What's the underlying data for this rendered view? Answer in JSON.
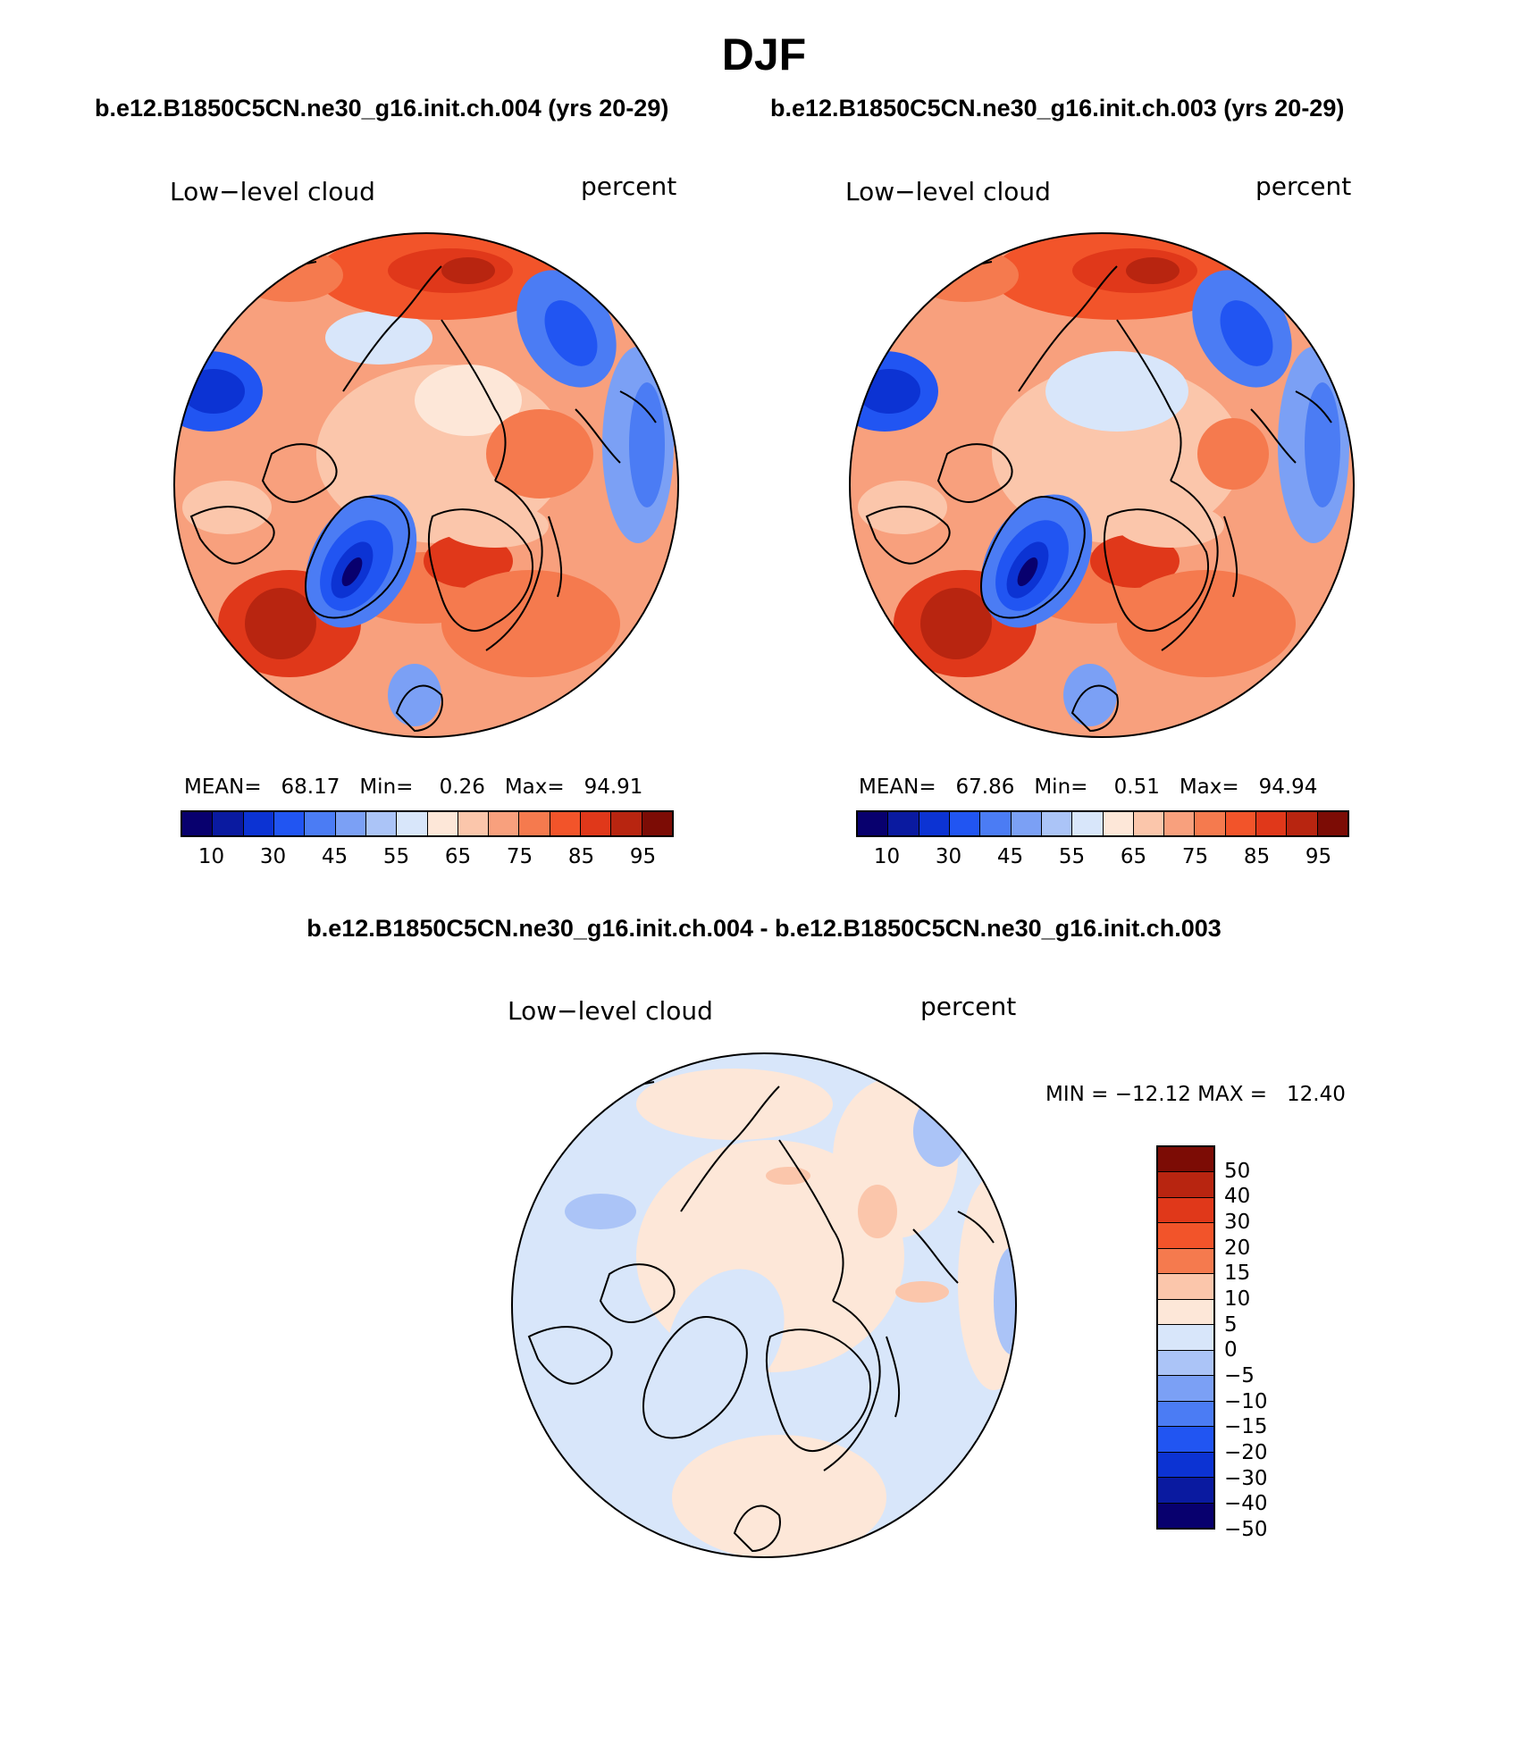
{
  "header": {
    "title": "DJF",
    "case_left": "b.e12.B1850C5CN.ne30_g16.init.ch.004 (yrs 20-29)",
    "case_right": "b.e12.B1850C5CN.ne30_g16.init.ch.003 (yrs 20-29)",
    "diff_title": "b.e12.B1850C5CN.ne30_g16.init.ch.004 - b.e12.B1850C5CN.ne30_g16.init.ch.003"
  },
  "colors": {
    "abs_scale": [
      "#08006e",
      "#0a1aa0",
      "#0c33d3",
      "#2155f2",
      "#4b7cf4",
      "#7ba0f5",
      "#abc4f7",
      "#d8e6fa",
      "#fde7d8",
      "#fbc6ab",
      "#f8a07d",
      "#f57a4e",
      "#f2542a",
      "#e0381a",
      "#b82510",
      "#7c0c05"
    ],
    "diff_scale": [
      "#7c0c05",
      "#b82510",
      "#e0381a",
      "#f2542a",
      "#f57a4e",
      "#fbc6ab",
      "#fde7d8",
      "#d8e6fa",
      "#abc4f7",
      "#7ba0f5",
      "#4b7cf4",
      "#2155f2",
      "#0c33d3",
      "#0a1aa0",
      "#08006e"
    ]
  },
  "panels": {
    "left": {
      "variable": "Low−level cloud",
      "units": "percent",
      "stats": {
        "mean_label": "MEAN=",
        "mean": "68.17",
        "min_label": "Min=",
        "min": "0.26",
        "max_label": "Max=",
        "max": "94.91"
      },
      "ticks": [
        "10",
        "30",
        "45",
        "55",
        "65",
        "75",
        "85",
        "95"
      ]
    },
    "right": {
      "variable": "Low−level cloud",
      "units": "percent",
      "stats": {
        "mean_label": "MEAN=",
        "mean": "67.86",
        "min_label": "Min=",
        "min": "0.51",
        "max_label": "Max=",
        "max": "94.94"
      },
      "ticks": [
        "10",
        "30",
        "45",
        "55",
        "65",
        "75",
        "85",
        "95"
      ]
    },
    "diff": {
      "variable": "Low−level cloud",
      "units": "percent",
      "minmax": "MIN = −12.12 MAX =   12.40",
      "ticks": [
        "50",
        "40",
        "30",
        "20",
        "15",
        "10",
        "5",
        "0",
        "−5",
        "−10",
        "−15",
        "−20",
        "−30",
        "−40",
        "−50"
      ]
    }
  }
}
